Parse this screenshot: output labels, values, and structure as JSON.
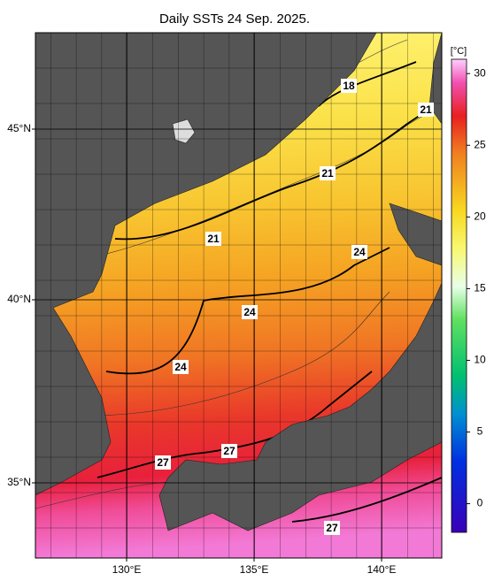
{
  "title": "Daily SSTs 24 Sep. 2025.",
  "map": {
    "lat_labels": [
      "45°N",
      "40°N",
      "35°N"
    ],
    "lon_labels": [
      "130°E",
      "135°E",
      "140°E"
    ]
  },
  "contour_labels": [
    18,
    21,
    21,
    21,
    24,
    24,
    24,
    27,
    27,
    27
  ],
  "colorbar": {
    "unit": "[°C]",
    "ylim": [
      -2,
      31
    ],
    "yticks": [
      0,
      5,
      10,
      15,
      20,
      25,
      30
    ]
  }
}
